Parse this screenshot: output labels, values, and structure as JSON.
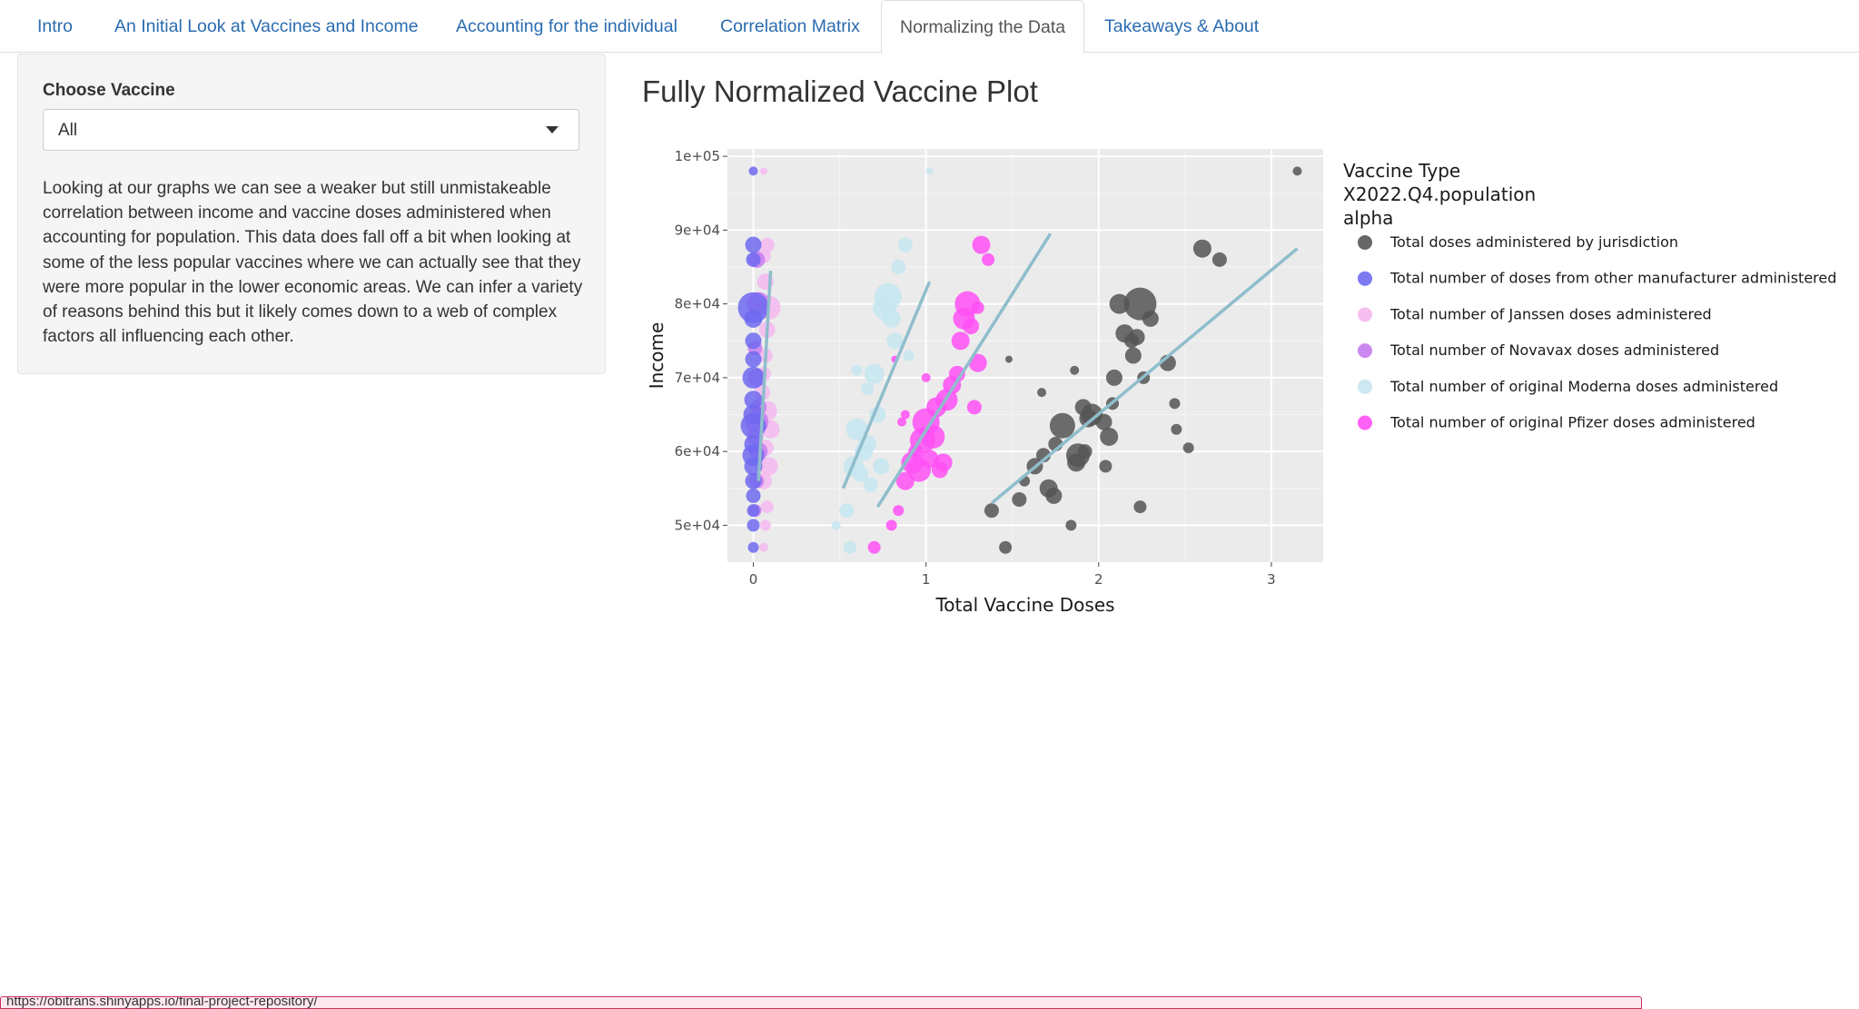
{
  "nav": {
    "tabs": [
      {
        "label": "Intro",
        "active": false
      },
      {
        "label": "An Initial Look at Vaccines and Income",
        "active": false
      },
      {
        "label": "Accounting for the individual",
        "active": false
      },
      {
        "label": "Correlation Matrix",
        "active": false
      },
      {
        "label": "Normalizing the Data",
        "active": true
      },
      {
        "label": "Takeaways & About",
        "active": false
      }
    ]
  },
  "sidebar": {
    "label": "Choose Vaccine",
    "select_value": "All",
    "description": "Looking at our graphs we can see a weaker but still unmistakeable correlation between income and vaccine doses administered when accounting for population. This data does fall off a bit when looking at some of the less popular vaccines where we can actually see that they were more popular in the lower economic areas. We can infer a variety of reasons behind this but it likely comes down to a web of complex factors all influencing each other."
  },
  "main": {
    "title": "Fully Normalized Vaccine Plot"
  },
  "chart_data": {
    "type": "scatter",
    "xlabel": "Total Vaccine Doses",
    "ylabel": "Income",
    "xlim": [
      -0.15,
      3.3
    ],
    "ylim": [
      45000,
      101000
    ],
    "x_ticks": [
      0,
      1,
      2,
      3
    ],
    "x_tick_labels": [
      "0",
      "1",
      "2",
      "3"
    ],
    "y_ticks": [
      50000,
      60000,
      70000,
      80000,
      90000,
      100000
    ],
    "y_tick_labels": [
      "5e+04",
      "6e+04",
      "7e+04",
      "8e+04",
      "9e+04",
      "1e+05"
    ],
    "grid": true,
    "background": "#ebebeb",
    "legend": {
      "placement": "right",
      "title_lines": [
        "Vaccine Type",
        "X2022.Q4.population",
        "alpha"
      ],
      "entries": [
        {
          "name": "Total doses administered by jurisdiction",
          "color": "#555555"
        },
        {
          "name": "Total number of doses from other manufacturer administered",
          "color": "#6f6af0"
        },
        {
          "name": "Total number of Janssen doses administered",
          "color": "#f5b8f0"
        },
        {
          "name": "Total number of Novavax doses administered",
          "color": "#c77bf0"
        },
        {
          "name": "Total number of original Moderna doses administered",
          "color": "#c6e6f0"
        },
        {
          "name": "Total number of original Pfizer doses administered",
          "color": "#ff50f5"
        }
      ]
    },
    "trend_color": "#8fbdcc",
    "trend_lines": [
      {
        "series": "Total doses administered by jurisdiction",
        "x": [
          1.38,
          3.15
        ],
        "y": [
          53000,
          87500
        ]
      },
      {
        "series": "Total number of original Pfizer doses administered",
        "x": [
          0.72,
          1.72
        ],
        "y": [
          52500,
          89500
        ]
      },
      {
        "series": "Total number of original Moderna doses administered",
        "x": [
          0.52,
          1.02
        ],
        "y": [
          55000,
          83000
        ]
      },
      {
        "series": "Total number of Janssen doses administered",
        "x": [
          0.03,
          0.1
        ],
        "y": [
          56000,
          84500
        ]
      }
    ],
    "series": [
      {
        "name": "Total doses administered by jurisdiction",
        "color": "#555555",
        "x": [
          1.46,
          1.38,
          1.54,
          1.57,
          1.63,
          1.68,
          1.71,
          1.74,
          1.75,
          1.79,
          1.84,
          1.87,
          1.88,
          1.92,
          1.96,
          2.03,
          2.04,
          2.06,
          2.08,
          2.09,
          2.12,
          2.15,
          2.19,
          2.2,
          2.22,
          2.24,
          2.26,
          2.3,
          2.4,
          2.44,
          2.45,
          2.52,
          2.6,
          2.7,
          1.94,
          1.86,
          1.48,
          1.67,
          1.91,
          2.24,
          3.15
        ],
        "y": [
          47000,
          52000,
          53500,
          56000,
          58000,
          59500,
          55000,
          54000,
          61000,
          63500,
          50000,
          58500,
          59500,
          60000,
          65000,
          64000,
          58000,
          62000,
          66500,
          70000,
          80000,
          76000,
          75000,
          73000,
          75500,
          80000,
          70000,
          78000,
          72000,
          66500,
          63000,
          60500,
          87500,
          86000,
          64500,
          71000,
          72500,
          68000,
          66000,
          52500,
          98000
        ],
        "r": [
          7,
          8,
          8,
          6,
          9,
          8,
          10,
          9,
          8,
          14,
          6,
          10,
          13,
          8,
          12,
          9,
          7,
          10,
          7,
          9,
          11,
          10,
          8,
          9,
          9,
          18,
          7,
          9,
          9,
          6,
          6,
          6,
          10,
          8,
          10,
          5,
          4,
          5,
          9,
          7,
          5
        ]
      },
      {
        "name": "Total number of original Pfizer doses administered",
        "color": "#ff50f5",
        "x": [
          0.7,
          0.8,
          0.84,
          0.88,
          0.92,
          0.94,
          0.96,
          0.98,
          1.0,
          1.02,
          1.04,
          1.06,
          1.08,
          1.1,
          1.12,
          1.15,
          1.18,
          1.2,
          1.22,
          1.24,
          1.26,
          1.28,
          1.3,
          1.32,
          1.36,
          0.86,
          1.0,
          1.3,
          0.82,
          0.88
        ],
        "y": [
          47000,
          50000,
          52000,
          56000,
          58500,
          60000,
          57500,
          61500,
          64000,
          59000,
          62000,
          66000,
          57500,
          58500,
          67000,
          69000,
          70500,
          75000,
          78000,
          80000,
          77000,
          66000,
          72000,
          88000,
          86000,
          64000,
          70000,
          79500,
          72500,
          65000
        ],
        "r": [
          7,
          6,
          6,
          10,
          12,
          8,
          13,
          14,
          15,
          10,
          13,
          11,
          9,
          10,
          12,
          10,
          9,
          10,
          12,
          14,
          9,
          8,
          10,
          10,
          7,
          5,
          5,
          7,
          4,
          5
        ]
      },
      {
        "name": "Total number of original Moderna doses administered",
        "color": "#c6e6f0",
        "x": [
          0.48,
          0.54,
          0.58,
          0.6,
          0.62,
          0.64,
          0.66,
          0.68,
          0.7,
          0.72,
          0.74,
          0.76,
          0.78,
          0.8,
          0.82,
          0.84,
          0.88,
          0.66,
          0.6,
          0.9,
          0.56,
          1.02
        ],
        "y": [
          50000,
          52000,
          58000,
          63000,
          57000,
          60000,
          61000,
          55500,
          70500,
          65000,
          58000,
          79500,
          81000,
          78000,
          75000,
          85000,
          88000,
          68500,
          71000,
          73000,
          47000,
          98000
        ],
        "r": [
          5,
          8,
          11,
          12,
          9,
          10,
          10,
          8,
          11,
          9,
          9,
          13,
          15,
          10,
          9,
          8,
          8,
          7,
          6,
          6,
          7,
          4
        ]
      },
      {
        "name": "Total number of Janssen doses administered",
        "color": "#f5b8f0",
        "x": [
          0.06,
          0.07,
          0.08,
          0.06,
          0.09,
          0.07,
          0.1,
          0.08,
          0.05,
          0.06,
          0.07,
          0.08,
          0.09,
          0.07,
          0.06,
          0.08,
          0.06
        ],
        "y": [
          47000,
          50000,
          52500,
          56000,
          58000,
          60500,
          63000,
          65500,
          68000,
          70500,
          73000,
          76500,
          79500,
          83000,
          86500,
          88000,
          98000
        ],
        "r": [
          5,
          6,
          7,
          9,
          10,
          9,
          10,
          11,
          9,
          8,
          8,
          9,
          13,
          9,
          8,
          8,
          4
        ]
      },
      {
        "name": "Total number of Novavax doses administered",
        "color": "#c77bf0",
        "x": [
          0.01,
          0.02,
          0.03,
          0.01,
          0.02,
          0.03,
          0.02,
          0.01,
          0.03,
          0.02
        ],
        "y": [
          52000,
          56000,
          60000,
          62000,
          64000,
          66000,
          70000,
          74000,
          80000,
          86000
        ],
        "r": [
          7,
          8,
          10,
          9,
          13,
          9,
          10,
          8,
          13,
          9
        ]
      },
      {
        "name": "Total number of doses from other manufacturer administered",
        "color": "#6f6af0",
        "x": [
          0.0,
          0.0,
          0.0,
          0.0,
          0.0,
          0.0,
          0.0,
          0.0,
          0.0,
          0.0,
          0.0,
          0.0,
          0.0,
          0.0,
          0.0,
          0.0,
          0.0,
          0.0,
          0.0
        ],
        "y": [
          47000,
          50000,
          52000,
          54000,
          56000,
          58000,
          59500,
          61000,
          63500,
          65000,
          67000,
          70000,
          72500,
          75000,
          78000,
          79500,
          86000,
          88000,
          98000
        ],
        "r": [
          6,
          7,
          7,
          8,
          9,
          10,
          12,
          10,
          14,
          11,
          10,
          12,
          9,
          9,
          10,
          17,
          8,
          9,
          5
        ]
      }
    ]
  },
  "statusbar": {
    "text": "https://obitrans.shinyapps.io/final-project-repository/"
  }
}
